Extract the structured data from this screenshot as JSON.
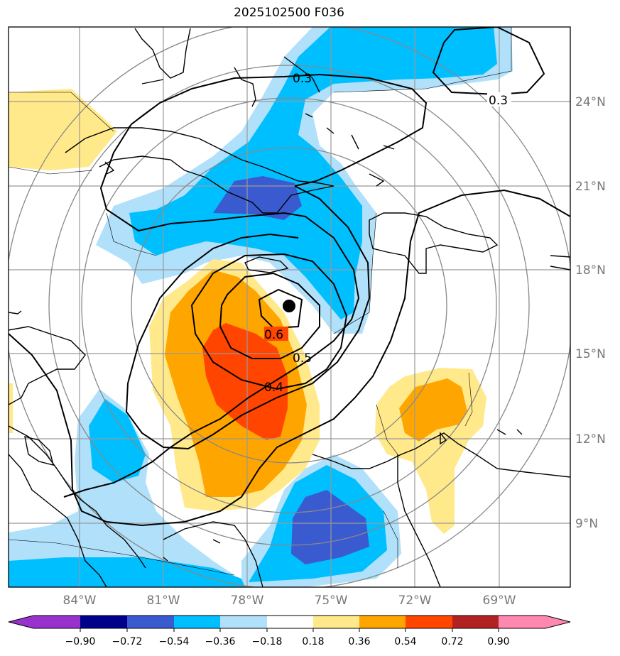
{
  "title": "2025102500 F036",
  "longitude_labels": [
    "84°W",
    "81°W",
    "78°W",
    "75°W",
    "72°W",
    "69°W"
  ],
  "latitude_labels": [
    "24°N",
    "21°N",
    "18°N",
    "15°N",
    "12°N",
    "9°N"
  ],
  "contour_labels": [
    "0.3",
    "0.3",
    "0.6",
    "0.5",
    "0.4"
  ],
  "colorbar": {
    "tick_labels": [
      "−0.90",
      "−0.72",
      "−0.54",
      "−0.36",
      "−0.18",
      "0.18",
      "0.36",
      "0.54",
      "0.72",
      "0.90"
    ],
    "colors": [
      "#9932cc",
      "#00008b",
      "#3a5bcf",
      "#00bfff",
      "#b0e0fa",
      "#ffffff",
      "#ffe98a",
      "#ffa500",
      "#ff4500",
      "#b22222",
      "#ff88b0"
    ]
  },
  "fill_colors": {
    "light_blue": "#b0e0fa",
    "blue": "#00bfff",
    "dark_blue": "#3a5bcf",
    "light_yellow": "#ffe98a",
    "orange": "#ffa500",
    "red_orange": "#ff4500"
  },
  "storm_center_marker": "filled-circle"
}
